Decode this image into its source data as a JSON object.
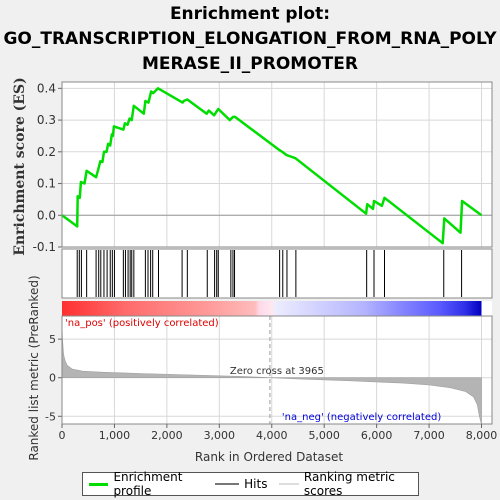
{
  "title": {
    "line1": "Enrichment plot:",
    "line2": "GO_TRANSCRIPTION_ELONGATION_FROM_RNA_POLY",
    "line3": "MERASE_II_PROMOTER"
  },
  "legend": {
    "profile": "Enrichment profile",
    "hits": "Hits",
    "ranking": "Ranking metric scores"
  },
  "colors": {
    "profile": "#00dd00",
    "hits": "#000000",
    "metric_fill": "#b4b4b4",
    "pos_label": "#dd0000",
    "neg_label": "#0000dd"
  },
  "chart_data": [
    {
      "type": "line",
      "panel": "enrichment",
      "ylabel": "Enrichment score (ES)",
      "ylim": [
        -0.1,
        0.42
      ],
      "xlim": [
        0,
        8200
      ],
      "yticks": [
        -0.1,
        0.0,
        0.1,
        0.2,
        0.3,
        0.4
      ],
      "ytick_labels": [
        "-0.1",
        "0.0",
        "0.1",
        "0.2",
        "0.3",
        "0.4"
      ],
      "grid": true,
      "series": [
        {
          "points": [
            [
              0,
              0.0
            ],
            [
              290,
              -0.035
            ],
            [
              300,
              0.06
            ],
            [
              340,
              0.055
            ],
            [
              360,
              0.105
            ],
            [
              430,
              0.1
            ],
            [
              470,
              0.14
            ],
            [
              650,
              0.12
            ],
            [
              700,
              0.15
            ],
            [
              730,
              0.17
            ],
            [
              770,
              0.168
            ],
            [
              800,
              0.2
            ],
            [
              850,
              0.2
            ],
            [
              880,
              0.225
            ],
            [
              920,
              0.22
            ],
            [
              950,
              0.255
            ],
            [
              970,
              0.25
            ],
            [
              990,
              0.28
            ],
            [
              1170,
              0.27
            ],
            [
              1200,
              0.29
            ],
            [
              1250,
              0.285
            ],
            [
              1290,
              0.305
            ],
            [
              1330,
              0.3
            ],
            [
              1370,
              0.345
            ],
            [
              1560,
              0.32
            ],
            [
              1590,
              0.36
            ],
            [
              1650,
              0.355
            ],
            [
              1700,
              0.39
            ],
            [
              1740,
              0.385
            ],
            [
              1830,
              0.4
            ],
            [
              2300,
              0.355
            ],
            [
              2320,
              0.36
            ],
            [
              2390,
              0.365
            ],
            [
              2760,
              0.32
            ],
            [
              2800,
              0.33
            ],
            [
              2900,
              0.315
            ],
            [
              2940,
              0.325
            ],
            [
              2980,
              0.335
            ],
            [
              3200,
              0.3
            ],
            [
              3230,
              0.305
            ],
            [
              3260,
              0.31
            ],
            [
              3300,
              0.31
            ],
            [
              4150,
              0.205
            ],
            [
              4200,
              0.2
            ],
            [
              4280,
              0.19
            ],
            [
              4450,
              0.18
            ],
            [
              5800,
              0.005
            ],
            [
              5820,
              0.035
            ],
            [
              5930,
              0.02
            ],
            [
              5950,
              0.045
            ],
            [
              6100,
              0.03
            ],
            [
              6150,
              0.055
            ],
            [
              7260,
              -0.088
            ],
            [
              7290,
              -0.01
            ],
            [
              7600,
              -0.055
            ],
            [
              7630,
              0.045
            ],
            [
              8000,
              0.0
            ]
          ]
        }
      ]
    },
    {
      "type": "scatter",
      "panel": "hits",
      "x": [
        290,
        330,
        370,
        470,
        650,
        700,
        740,
        800,
        860,
        920,
        960,
        1000,
        1170,
        1210,
        1260,
        1300,
        1330,
        1370,
        1590,
        1640,
        1690,
        1730,
        1840,
        2290,
        2390,
        2770,
        2910,
        2950,
        2980,
        3220,
        3260,
        3290,
        4150,
        4210,
        4290,
        4460,
        5810,
        5950,
        6150,
        7280,
        7620
      ]
    },
    {
      "type": "area",
      "panel": "ranked_metric",
      "ylabel": "Ranked list metric (PreRanked)",
      "xlabel": "Rank in Ordered Dataset",
      "ylim": [
        -6,
        8
      ],
      "yticks": [
        -5,
        0,
        5
      ],
      "ytick_labels": [
        "-5",
        "0",
        "5"
      ],
      "xticks": [
        0,
        1000,
        2000,
        3000,
        4000,
        5000,
        6000,
        7000,
        8000
      ],
      "xtick_labels": [
        "0",
        "1,000",
        "2,000",
        "3,000",
        "4,000",
        "5,000",
        "6,000",
        "7,000",
        "8,000"
      ],
      "grid": true,
      "points": [
        [
          0,
          7.0
        ],
        [
          10,
          5.0
        ],
        [
          30,
          3.0
        ],
        [
          60,
          2.2
        ],
        [
          100,
          1.6
        ],
        [
          200,
          1.1
        ],
        [
          400,
          0.85
        ],
        [
          800,
          0.7
        ],
        [
          1500,
          0.55
        ],
        [
          2500,
          0.35
        ],
        [
          3500,
          0.15
        ],
        [
          3965,
          0.0
        ],
        [
          4500,
          -0.15
        ],
        [
          5500,
          -0.4
        ],
        [
          6500,
          -0.7
        ],
        [
          7000,
          -0.95
        ],
        [
          7400,
          -1.3
        ],
        [
          7700,
          -1.8
        ],
        [
          7850,
          -2.5
        ],
        [
          7920,
          -3.5
        ],
        [
          7960,
          -5.0
        ],
        [
          7990,
          -5.8
        ],
        [
          8000,
          -6.0
        ]
      ],
      "annotations": {
        "pos": "'na_pos' (positively correlated)",
        "neg": "'na_neg' (negatively correlated)",
        "zero": "Zero cross at 3965"
      },
      "zero_cross": 3965
    }
  ]
}
